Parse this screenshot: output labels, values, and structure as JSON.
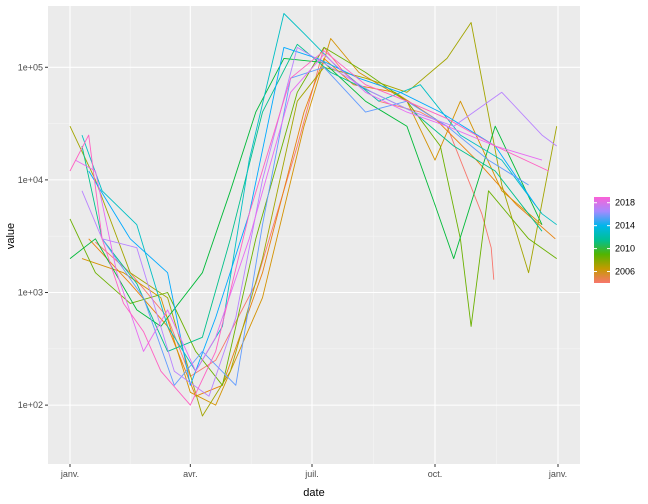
{
  "chart_data": {
    "type": "line",
    "title": "",
    "xlabel": "date",
    "ylabel": "value",
    "y_scale": "log10",
    "ylim": [
      30,
      350000
    ],
    "x_domain": [
      "2021-01-01",
      "2022-01-01"
    ],
    "x_ticks": [
      {
        "date": "2021-01-01",
        "label": "janv."
      },
      {
        "date": "2021-04-01",
        "label": "avr."
      },
      {
        "date": "2021-07-01",
        "label": "juil."
      },
      {
        "date": "2021-10-01",
        "label": "oct."
      },
      {
        "date": "2022-01-01",
        "label": "janv."
      }
    ],
    "y_ticks": [
      {
        "value": 100,
        "label": "1e+02"
      },
      {
        "value": 1000,
        "label": "1e+03"
      },
      {
        "value": 10000,
        "label": "1e+04"
      },
      {
        "value": 100000,
        "label": "1e+05"
      }
    ],
    "grid": true,
    "legend": {
      "position": "right",
      "type": "colorbar",
      "range": [
        2004,
        2019
      ],
      "labels": [
        {
          "value": 2006,
          "label": "2006"
        },
        {
          "value": 2010,
          "label": "2010"
        },
        {
          "value": 2014,
          "label": "2014"
        },
        {
          "value": 2018,
          "label": "2018"
        }
      ],
      "colors": [
        "#f8766d",
        "#c49a00",
        "#53b400",
        "#00c094",
        "#00b6eb",
        "#a58aff",
        "#fb61d7"
      ]
    },
    "series": [
      {
        "year": 2006,
        "color": "#f8766d",
        "points": [
          [
            "2021-01-20",
            2800
          ],
          [
            "2021-02-15",
            1500
          ],
          [
            "2021-03-15",
            600
          ],
          [
            "2021-04-01",
            180
          ],
          [
            "2021-04-20",
            250
          ],
          [
            "2021-05-20",
            1200
          ],
          [
            "2021-06-20",
            20000
          ],
          [
            "2021-07-10",
            150000
          ],
          [
            "2021-07-25",
            90000
          ],
          [
            "2021-08-20",
            50000
          ],
          [
            "2021-09-20",
            40000
          ],
          [
            "2021-10-10",
            30000
          ],
          [
            "2021-11-05",
            5000
          ],
          [
            "2021-11-12",
            2500
          ],
          [
            "2021-11-14",
            1300
          ]
        ]
      },
      {
        "year": 2007,
        "color": "#e8820e",
        "points": [
          [
            "2021-01-15",
            3000
          ],
          [
            "2021-02-15",
            1200
          ],
          [
            "2021-03-15",
            500
          ],
          [
            "2021-04-05",
            120
          ],
          [
            "2021-04-25",
            150
          ],
          [
            "2021-05-25",
            1500
          ],
          [
            "2021-06-25",
            40000
          ],
          [
            "2021-07-10",
            120000
          ],
          [
            "2021-08-01",
            70000
          ],
          [
            "2021-09-01",
            60000
          ],
          [
            "2021-10-01",
            35000
          ],
          [
            "2021-11-01",
            15000
          ],
          [
            "2021-12-01",
            6000
          ],
          [
            "2021-12-30",
            3000
          ]
        ]
      },
      {
        "year": 2008,
        "color": "#d49200",
        "points": [
          [
            "2021-01-10",
            2000
          ],
          [
            "2021-02-10",
            1500
          ],
          [
            "2021-03-10",
            900
          ],
          [
            "2021-04-01",
            130
          ],
          [
            "2021-04-20",
            100
          ],
          [
            "2021-05-25",
            900
          ],
          [
            "2021-06-25",
            30000
          ],
          [
            "2021-07-15",
            180000
          ],
          [
            "2021-08-05",
            90000
          ],
          [
            "2021-09-10",
            50000
          ],
          [
            "2021-10-01",
            15000
          ],
          [
            "2021-10-20",
            50000
          ],
          [
            "2021-11-20",
            8000
          ],
          [
            "2021-12-20",
            4000
          ]
        ]
      },
      {
        "year": 2009,
        "color": "#a3a500",
        "points": [
          [
            "2021-01-01",
            30000
          ],
          [
            "2021-01-20",
            10000
          ],
          [
            "2021-02-15",
            1500
          ],
          [
            "2021-03-15",
            900
          ],
          [
            "2021-04-10",
            80
          ],
          [
            "2021-05-01",
            200
          ],
          [
            "2021-05-25",
            2000
          ],
          [
            "2021-06-20",
            50000
          ],
          [
            "2021-07-10",
            100000
          ],
          [
            "2021-08-10",
            80000
          ],
          [
            "2021-09-10",
            60000
          ],
          [
            "2021-10-10",
            120000
          ],
          [
            "2021-10-28",
            250000
          ],
          [
            "2021-11-20",
            9000
          ],
          [
            "2021-12-10",
            1500
          ],
          [
            "2021-12-31",
            30000
          ]
        ]
      },
      {
        "year": 2010,
        "color": "#6bb100",
        "points": [
          [
            "2021-01-01",
            4500
          ],
          [
            "2021-01-20",
            1500
          ],
          [
            "2021-02-15",
            800
          ],
          [
            "2021-03-15",
            1000
          ],
          [
            "2021-04-05",
            300
          ],
          [
            "2021-04-25",
            150
          ],
          [
            "2021-05-20",
            3000
          ],
          [
            "2021-06-20",
            60000
          ],
          [
            "2021-07-10",
            150000
          ],
          [
            "2021-08-10",
            90000
          ],
          [
            "2021-09-10",
            50000
          ],
          [
            "2021-10-05",
            20000
          ],
          [
            "2021-10-20",
            3000
          ],
          [
            "2021-10-28",
            500
          ],
          [
            "2021-11-10",
            8000
          ],
          [
            "2021-12-10",
            3000
          ],
          [
            "2021-12-31",
            2000
          ]
        ]
      },
      {
        "year": 2011,
        "color": "#00ba38",
        "points": [
          [
            "2021-01-01",
            2000
          ],
          [
            "2021-01-20",
            3000
          ],
          [
            "2021-02-20",
            700
          ],
          [
            "2021-03-10",
            500
          ],
          [
            "2021-04-10",
            1500
          ],
          [
            "2021-05-01",
            8000
          ],
          [
            "2021-05-20",
            40000
          ],
          [
            "2021-06-10",
            120000
          ],
          [
            "2021-07-10",
            110000
          ],
          [
            "2021-08-10",
            50000
          ],
          [
            "2021-09-10",
            30000
          ],
          [
            "2021-10-01",
            6000
          ],
          [
            "2021-10-15",
            2000
          ],
          [
            "2021-11-15",
            30000
          ],
          [
            "2021-12-20",
            4000
          ]
        ]
      },
      {
        "year": 2012,
        "color": "#00c08b",
        "points": [
          [
            "2021-01-10",
            20000
          ],
          [
            "2021-01-25",
            3000
          ],
          [
            "2021-02-20",
            1200
          ],
          [
            "2021-03-15",
            300
          ],
          [
            "2021-04-10",
            400
          ],
          [
            "2021-05-01",
            3000
          ],
          [
            "2021-05-25",
            40000
          ],
          [
            "2021-06-20",
            160000
          ],
          [
            "2021-07-15",
            90000
          ],
          [
            "2021-08-15",
            60000
          ],
          [
            "2021-09-15",
            40000
          ],
          [
            "2021-10-15",
            20000
          ],
          [
            "2021-11-15",
            12000
          ],
          [
            "2021-12-20",
            3500
          ]
        ]
      },
      {
        "year": 2013,
        "color": "#00bfc4",
        "points": [
          [
            "2021-01-10",
            25000
          ],
          [
            "2021-01-25",
            8000
          ],
          [
            "2021-02-20",
            4000
          ],
          [
            "2021-03-15",
            500
          ],
          [
            "2021-04-05",
            200
          ],
          [
            "2021-04-25",
            500
          ],
          [
            "2021-05-15",
            15000
          ],
          [
            "2021-06-10",
            300000
          ],
          [
            "2021-06-25",
            200000
          ],
          [
            "2021-07-20",
            100000
          ],
          [
            "2021-08-20",
            50000
          ],
          [
            "2021-09-20",
            70000
          ],
          [
            "2021-10-20",
            25000
          ],
          [
            "2021-11-20",
            15000
          ],
          [
            "2021-12-20",
            5000
          ],
          [
            "2021-12-31",
            4000
          ]
        ]
      },
      {
        "year": 2014,
        "color": "#00a9ff",
        "points": [
          [
            "2021-01-15",
            12000
          ],
          [
            "2021-02-15",
            3000
          ],
          [
            "2021-03-15",
            1500
          ],
          [
            "2021-04-01",
            150
          ],
          [
            "2021-04-20",
            600
          ],
          [
            "2021-05-15",
            5000
          ],
          [
            "2021-06-10",
            150000
          ],
          [
            "2021-07-05",
            120000
          ],
          [
            "2021-08-05",
            80000
          ],
          [
            "2021-09-05",
            60000
          ],
          [
            "2021-10-05",
            40000
          ],
          [
            "2021-11-15",
            20000
          ],
          [
            "2021-12-15",
            6000
          ]
        ]
      },
      {
        "year": 2015,
        "color": "#619cff",
        "points": [
          [
            "2021-01-25",
            3000
          ],
          [
            "2021-02-25",
            900
          ],
          [
            "2021-03-20",
            150
          ],
          [
            "2021-04-10",
            300
          ],
          [
            "2021-05-05",
            150
          ],
          [
            "2021-05-25",
            4000
          ],
          [
            "2021-06-15",
            80000
          ],
          [
            "2021-07-10",
            100000
          ],
          [
            "2021-08-10",
            40000
          ],
          [
            "2021-09-10",
            50000
          ],
          [
            "2021-10-10",
            30000
          ],
          [
            "2021-11-10",
            15000
          ],
          [
            "2021-12-10",
            9000
          ]
        ]
      },
      {
        "year": 2016,
        "color": "#b983ff",
        "points": [
          [
            "2021-01-10",
            8000
          ],
          [
            "2021-01-25",
            3000
          ],
          [
            "2021-02-20",
            2500
          ],
          [
            "2021-03-20",
            200
          ],
          [
            "2021-04-15",
            120
          ],
          [
            "2021-05-05",
            600
          ],
          [
            "2021-05-25",
            10000
          ],
          [
            "2021-06-20",
            150000
          ],
          [
            "2021-07-15",
            100000
          ],
          [
            "2021-08-15",
            60000
          ],
          [
            "2021-09-15",
            40000
          ],
          [
            "2021-10-15",
            30000
          ],
          [
            "2021-11-20",
            60000
          ],
          [
            "2021-12-20",
            25000
          ],
          [
            "2021-12-31",
            20000
          ]
        ]
      },
      {
        "year": 2017,
        "color": "#e76bf3",
        "points": [
          [
            "2021-01-05",
            15000
          ],
          [
            "2021-01-20",
            12000
          ],
          [
            "2021-02-05",
            1500
          ],
          [
            "2021-02-25",
            300
          ],
          [
            "2021-03-15",
            700
          ],
          [
            "2021-04-05",
            200
          ],
          [
            "2021-04-20",
            400
          ],
          [
            "2021-05-15",
            3000
          ],
          [
            "2021-06-15",
            60000
          ],
          [
            "2021-07-10",
            130000
          ],
          [
            "2021-08-10",
            60000
          ],
          [
            "2021-09-10",
            40000
          ],
          [
            "2021-10-10",
            30000
          ],
          [
            "2021-11-15",
            20000
          ],
          [
            "2021-12-20",
            15000
          ]
        ]
      },
      {
        "year": 2018,
        "color": "#ff61c3",
        "points": [
          [
            "2021-01-01",
            12000
          ],
          [
            "2021-01-15",
            25000
          ],
          [
            "2021-01-25",
            3000
          ],
          [
            "2021-02-10",
            800
          ],
          [
            "2021-02-25",
            450
          ],
          [
            "2021-03-10",
            200
          ],
          [
            "2021-04-01",
            100
          ],
          [
            "2021-04-20",
            300
          ],
          [
            "2021-05-15",
            5000
          ],
          [
            "2021-06-15",
            80000
          ],
          [
            "2021-07-10",
            140000
          ],
          [
            "2021-08-10",
            70000
          ],
          [
            "2021-09-10",
            50000
          ],
          [
            "2021-10-10",
            35000
          ],
          [
            "2021-11-15",
            20000
          ],
          [
            "2021-12-25",
            12000
          ]
        ]
      }
    ]
  }
}
